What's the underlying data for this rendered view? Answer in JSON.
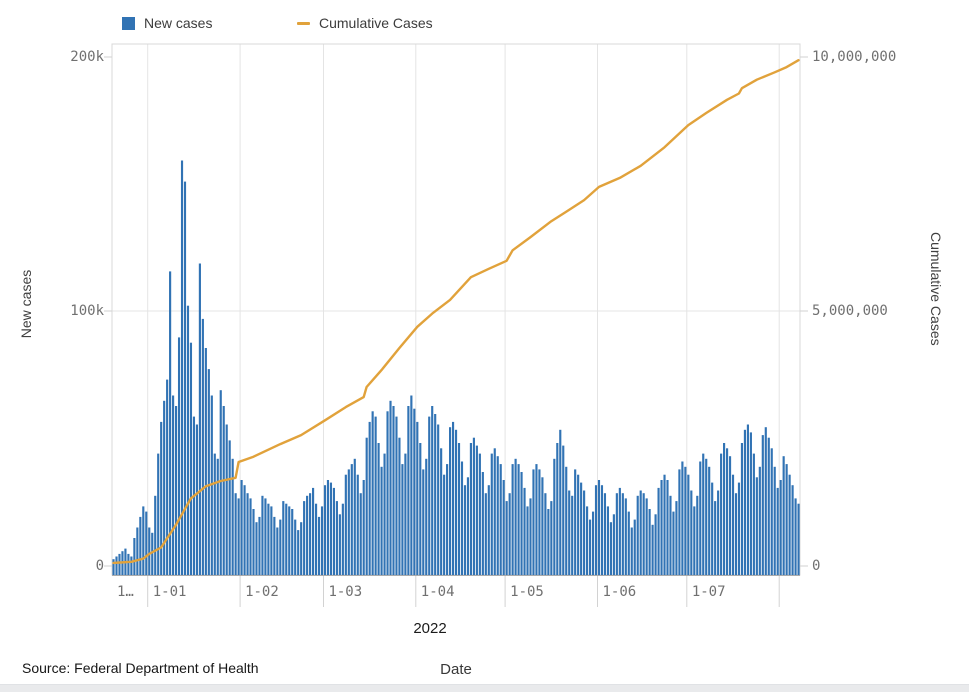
{
  "legend": {
    "items": [
      {
        "label": "New cases",
        "color": "#3173b4",
        "swatch": "square"
      },
      {
        "label": "Cumulative Cases",
        "color": "#e1a23b",
        "swatch": "line"
      }
    ]
  },
  "y_left": {
    "title": "New cases",
    "ticks": [
      "200k",
      "100k",
      "0"
    ],
    "max": 200000
  },
  "y_right": {
    "title": "Cumulative Cases",
    "ticks": [
      "10,000,000",
      "5,000,000",
      "0"
    ],
    "max": 10000000
  },
  "x_axis": {
    "year_label": "2022",
    "title": "Date",
    "tick_labels": [
      "1…",
      "1-01",
      "1-02",
      "1-03",
      "1-04",
      "1-05",
      "1-06",
      "1-07"
    ]
  },
  "source": {
    "text": "Source: Federal Department of Health"
  },
  "colors": {
    "bar": "#3173b4",
    "line": "#e1a23b",
    "grid": "#e4e4e4",
    "border": "#d8d8d8",
    "axis_line": "#ababab",
    "tick": "#d2d2d2",
    "tick_text": "#707070"
  },
  "chart_data": {
    "type": "bar",
    "combo": "daily bars (New cases, left axis) + cumulative line (right axis)",
    "title": "",
    "xlabel": "Date",
    "ylabel_left": "New cases",
    "ylabel_right": "Cumulative Cases",
    "start_date": "2021-12-20",
    "end_date": "2022-08-07",
    "days_total": 231,
    "month_start_day_indices": [
      12,
      43,
      71,
      102,
      132,
      163,
      193,
      224
    ],
    "ylim_left": [
      0,
      200000
    ],
    "ylim_right": [
      0,
      10000000
    ],
    "grid": "on",
    "legend_position": "top-left",
    "series": [
      {
        "name": "New cases",
        "type": "bar",
        "axis": "left",
        "values": [
          6000,
          7000,
          8000,
          9000,
          10000,
          8000,
          7000,
          14000,
          18000,
          22000,
          26000,
          24000,
          18000,
          16000,
          30000,
          46000,
          58000,
          66000,
          74000,
          115000,
          68000,
          64000,
          90000,
          157000,
          149000,
          102000,
          88000,
          60000,
          57000,
          118000,
          97000,
          86000,
          78000,
          68000,
          46000,
          44000,
          70000,
          64000,
          57000,
          51000,
          44000,
          31000,
          29000,
          36000,
          34000,
          31000,
          29000,
          25000,
          20000,
          22000,
          30000,
          29000,
          27000,
          26000,
          22000,
          18000,
          21000,
          28000,
          27000,
          26000,
          25000,
          21000,
          17000,
          20000,
          28000,
          30000,
          31000,
          33000,
          27000,
          22000,
          26000,
          34000,
          36000,
          35000,
          33000,
          28000,
          23000,
          27000,
          38000,
          40000,
          42000,
          44000,
          38000,
          31000,
          36000,
          52000,
          58000,
          62000,
          60000,
          50000,
          41000,
          46000,
          62000,
          66000,
          64000,
          60000,
          52000,
          42000,
          46000,
          64000,
          68000,
          63000,
          58000,
          50000,
          40000,
          44000,
          60000,
          64000,
          61000,
          57000,
          48000,
          38000,
          42000,
          56000,
          58000,
          55000,
          50000,
          43000,
          34000,
          37000,
          50000,
          52000,
          49000,
          46000,
          39000,
          31000,
          34000,
          46000,
          48000,
          45000,
          42000,
          36000,
          28000,
          31000,
          42000,
          44000,
          42000,
          39000,
          33000,
          26000,
          29000,
          40000,
          42000,
          40000,
          37000,
          31000,
          25000,
          28000,
          44000,
          50000,
          55000,
          49000,
          41000,
          32000,
          30000,
          40000,
          38000,
          35000,
          32000,
          26000,
          21000,
          24000,
          34000,
          36000,
          34000,
          31000,
          26000,
          20000,
          23000,
          31000,
          33000,
          31000,
          29000,
          24000,
          18000,
          21000,
          30000,
          32000,
          31000,
          29000,
          25000,
          19000,
          23000,
          33000,
          36000,
          38000,
          36000,
          30000,
          24000,
          28000,
          40000,
          43000,
          41000,
          38000,
          32000,
          26000,
          30000,
          43000,
          46000,
          44000,
          41000,
          35000,
          28000,
          32000,
          46000,
          50000,
          48000,
          45000,
          38000,
          31000,
          35000,
          50000,
          55000,
          57000,
          54000,
          46000,
          37000,
          41000,
          53000,
          56000,
          52000,
          48000,
          41000,
          33000,
          36000,
          45000,
          42000,
          38000,
          34000,
          29000,
          27000
        ]
      },
      {
        "name": "Cumulative Cases",
        "type": "line",
        "axis": "right",
        "control_points": [
          [
            0,
            230000
          ],
          [
            6,
            250000
          ],
          [
            10,
            310000
          ],
          [
            12,
            400000
          ],
          [
            16,
            520000
          ],
          [
            21,
            950000
          ],
          [
            26,
            1450000
          ],
          [
            31,
            1680000
          ],
          [
            36,
            1780000
          ],
          [
            41,
            1840000
          ],
          [
            42,
            2140000
          ],
          [
            47,
            2240000
          ],
          [
            56,
            2480000
          ],
          [
            63,
            2650000
          ],
          [
            71,
            2930000
          ],
          [
            78,
            3180000
          ],
          [
            84,
            3370000
          ],
          [
            85,
            3560000
          ],
          [
            90,
            3880000
          ],
          [
            96,
            4300000
          ],
          [
            102,
            4700000
          ],
          [
            107,
            4950000
          ],
          [
            113,
            5210000
          ],
          [
            120,
            5640000
          ],
          [
            126,
            5800000
          ],
          [
            132,
            5950000
          ],
          [
            134,
            6150000
          ],
          [
            140,
            6400000
          ],
          [
            147,
            6700000
          ],
          [
            152,
            6880000
          ],
          [
            158,
            7100000
          ],
          [
            163,
            7350000
          ],
          [
            170,
            7520000
          ],
          [
            177,
            7750000
          ],
          [
            185,
            8100000
          ],
          [
            193,
            8520000
          ],
          [
            199,
            8750000
          ],
          [
            206,
            9000000
          ],
          [
            210,
            9120000
          ],
          [
            211,
            9220000
          ],
          [
            216,
            9380000
          ],
          [
            222,
            9520000
          ],
          [
            226,
            9620000
          ],
          [
            230,
            9750000
          ]
        ]
      }
    ]
  }
}
